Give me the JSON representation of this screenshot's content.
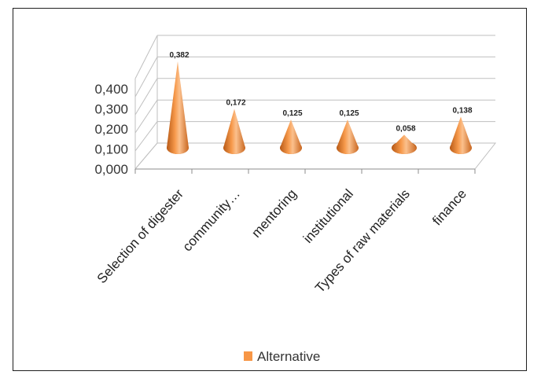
{
  "chart_data": {
    "type": "bar",
    "shape": "3d-cone",
    "categories": [
      "Selection of digester",
      "community…",
      "mentoring",
      "institutional",
      "Types of raw materials",
      "finance"
    ],
    "series": [
      {
        "name": "Alternative",
        "values": [
          0.382,
          0.172,
          0.125,
          0.125,
          0.058,
          0.138
        ],
        "color": "#F79646"
      }
    ],
    "value_labels": [
      "0,382",
      "0,172",
      "0,125",
      "0,125",
      "0,058",
      "0,138"
    ],
    "y_ticks": [
      "0,000",
      "0,100",
      "0,200",
      "0,300",
      "0,400"
    ],
    "ylim": [
      0,
      0.5
    ],
    "grid": true,
    "legend": "bottom"
  }
}
